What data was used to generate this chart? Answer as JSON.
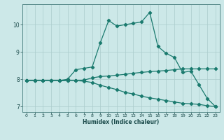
{
  "title": "",
  "xlabel": "Humidex (Indice chaleur)",
  "ylabel": "",
  "background_color": "#cce8e8",
  "grid_color": "#aacccc",
  "line_color": "#1a7a6e",
  "xlim": [
    -0.5,
    23.5
  ],
  "ylim": [
    6.8,
    10.75
  ],
  "xticks": [
    0,
    1,
    2,
    3,
    4,
    5,
    6,
    7,
    8,
    9,
    10,
    11,
    12,
    13,
    14,
    15,
    16,
    17,
    18,
    19,
    20,
    21,
    22,
    23
  ],
  "yticks": [
    7,
    8,
    9,
    10
  ],
  "line1_x": [
    0,
    1,
    2,
    3,
    4,
    5,
    6,
    7,
    8,
    9,
    10,
    11,
    12,
    13,
    14,
    15,
    16,
    17,
    18,
    19,
    20,
    21,
    22,
    23
  ],
  "line1_y": [
    7.95,
    7.95,
    7.95,
    7.95,
    7.95,
    8.0,
    8.35,
    8.4,
    8.45,
    9.35,
    10.15,
    9.95,
    10.0,
    10.05,
    10.1,
    10.45,
    9.2,
    8.95,
    8.8,
    8.25,
    8.3,
    7.8,
    7.3,
    7.0
  ],
  "line2_x": [
    0,
    1,
    2,
    3,
    4,
    5,
    6,
    7,
    8,
    9,
    10,
    11,
    12,
    13,
    14,
    15,
    16,
    17,
    18,
    19,
    20,
    21,
    22,
    23
  ],
  "line2_y": [
    7.95,
    7.95,
    7.95,
    7.95,
    7.95,
    7.95,
    7.95,
    7.97,
    8.05,
    8.1,
    8.12,
    8.15,
    8.18,
    8.22,
    8.25,
    8.28,
    8.3,
    8.32,
    8.35,
    8.38,
    8.38,
    8.38,
    8.38,
    8.38
  ],
  "line3_x": [
    0,
    1,
    2,
    3,
    4,
    5,
    6,
    7,
    8,
    9,
    10,
    11,
    12,
    13,
    14,
    15,
    16,
    17,
    18,
    19,
    20,
    21,
    22,
    23
  ],
  "line3_y": [
    7.95,
    7.95,
    7.95,
    7.95,
    7.95,
    7.95,
    7.95,
    7.93,
    7.88,
    7.78,
    7.7,
    7.62,
    7.52,
    7.46,
    7.38,
    7.32,
    7.27,
    7.22,
    7.17,
    7.12,
    7.1,
    7.08,
    7.03,
    7.0
  ]
}
